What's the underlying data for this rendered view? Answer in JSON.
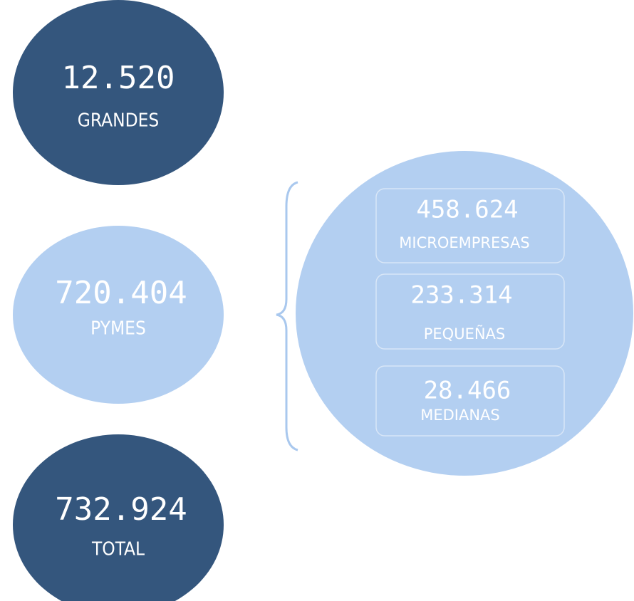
{
  "nodes": [
    {
      "value": "12.520",
      "label": "GRANDES"
    },
    {
      "value": "720.404",
      "label": "PYMES"
    },
    {
      "value": "732.924",
      "label": "TOTAL"
    }
  ],
  "breakdown": [
    {
      "value": "458.624",
      "label": "MICROEMPRESAS"
    },
    {
      "value": "233.314",
      "label": "PEQUEÑAS"
    },
    {
      "value": "28.466",
      "label": "MEDIANAS"
    }
  ]
}
